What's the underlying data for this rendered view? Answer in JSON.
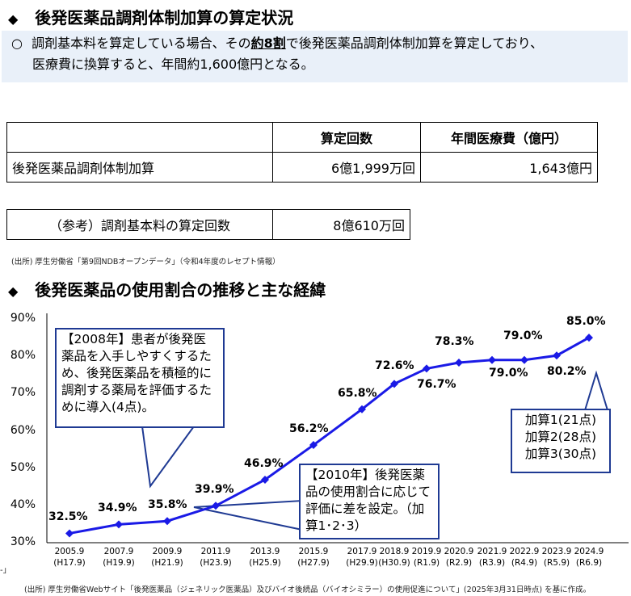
{
  "section1": {
    "bullet": "◆",
    "title": "後発医薬品調剤体制加算の算定状況",
    "note_marker": "○",
    "note_line1_pre": "調剤基本料を算定している場合、その",
    "note_line1_bold": "約8割",
    "note_line1_post": "で後発医薬品調剤体制加算を算定しており、",
    "note_line2": "医療費に換算すると、年間約1,600億円となる。"
  },
  "table": {
    "headers": [
      "算定回数",
      "年間医療費（億円）"
    ],
    "row_label": "後発医薬品調剤体制加算",
    "row_count": "6億1,999万回",
    "row_cost": "1,643億円"
  },
  "ref_table": {
    "label": "（参考）調剤基本料の算定回数",
    "value": "8億610万回"
  },
  "source1": "(出所) 厚生労働省「第9回NDBオープンデータ」（令和4年度のレセプト情報）",
  "section2": {
    "bullet": "◆",
    "title": "後発医薬品の使用割合の推移と主な経緯"
  },
  "callouts": {
    "c2008": "【2008年】患者が後発医薬品を入手しやすくするため、後発医薬品を積極的に調剤する薬局を評価するために導入(4点)。",
    "c2010": "【2010年】後発医薬品の使用割合に応じて評価に差を設定。（加算1･2･3）",
    "c2024_lines": [
      "加算1(21点)",
      "加算2(28点)",
      "加算3(30点)"
    ]
  },
  "source2": "(出所) 厚生労働省Webサイト「後発医薬品（ジェネリック医薬品）及びバイオ後続品（バイオシミラー）の使用促進について」(2025年3月31日時点) を基に作成。",
  "left_mark": "-」",
  "colors": {
    "line": "#1a1ae6",
    "callout_border": "#1f3a93",
    "note_bg": "#e9f0f9"
  },
  "chart_data": {
    "type": "line",
    "title": "",
    "xlabel": "",
    "ylabel": "",
    "ylim": [
      30,
      90
    ],
    "yticks": [
      "30%",
      "40%",
      "50%",
      "60%",
      "70%",
      "80%",
      "90%"
    ],
    "grid": false,
    "categories": [
      "2005.9",
      "2007.9",
      "2009.9",
      "2011.9",
      "2013.9",
      "2015.9",
      "2017.9",
      "2018.9",
      "2019.9",
      "2020.9",
      "2021.9",
      "2022.9",
      "2023.9",
      "2024.9"
    ],
    "category_sublabels": [
      "(H17.9)",
      "(H19.9)",
      "(H21.9)",
      "(H23.9)",
      "(H25.9)",
      "(H27.9)",
      "(H29.9)",
      "(H30.9)",
      "(R1.9)",
      "(R2.9)",
      "(R3.9)",
      "(R4.9)",
      "(R5.9)",
      "(R6.9)"
    ],
    "series": [
      {
        "values": [
          32.5,
          34.9,
          35.8,
          39.9,
          46.9,
          56.2,
          65.8,
          72.6,
          76.7,
          78.3,
          79.0,
          79.0,
          80.2,
          85.0
        ],
        "labels": [
          "32.5%",
          "34.9%",
          "35.8%",
          "39.9%",
          "46.9%",
          "56.2%",
          "65.8%",
          "72.6%",
          "76.7%",
          "78.3%",
          "79.0%",
          "79.0%",
          "80.2%",
          "85.0%"
        ]
      }
    ]
  }
}
